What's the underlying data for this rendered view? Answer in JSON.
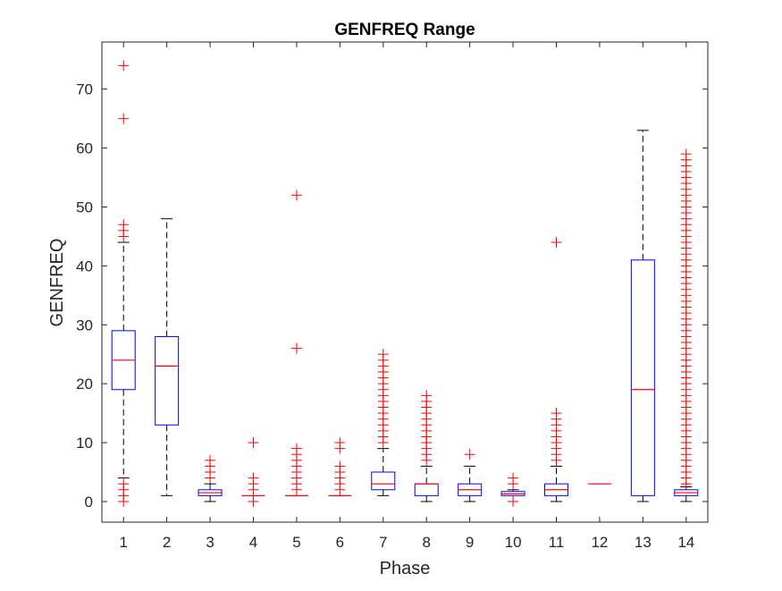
{
  "colors": {
    "box": "#0000ff",
    "median": "#ff0000",
    "outlier": "#ff0000",
    "whisker": "#000000",
    "axis": "#262626"
  },
  "chart_data": {
    "type": "boxplot",
    "title": "GENFREQ Range",
    "xlabel": "Phase",
    "ylabel": "GENFREQ",
    "ylim": [
      -3.5,
      78
    ],
    "yticks": [
      0,
      10,
      20,
      30,
      40,
      50,
      60,
      70
    ],
    "grid": false,
    "categories": [
      "1",
      "2",
      "3",
      "4",
      "5",
      "6",
      "7",
      "8",
      "9",
      "10",
      "11",
      "12",
      "13",
      "14"
    ],
    "boxes": [
      {
        "category": "1",
        "whisker_low": 4,
        "q1": 19,
        "median": 24,
        "q3": 29,
        "whisker_high": 44,
        "outliers": [
          0,
          1,
          2,
          3,
          45,
          46,
          47,
          65,
          74
        ]
      },
      {
        "category": "2",
        "whisker_low": 1,
        "q1": 13,
        "median": 23,
        "q3": 28,
        "whisker_high": 48,
        "outliers": []
      },
      {
        "category": "3",
        "whisker_low": 0,
        "q1": 1,
        "median": 1.5,
        "q3": 2,
        "whisker_high": 3,
        "outliers": [
          4,
          5,
          6,
          7
        ]
      },
      {
        "category": "4",
        "whisker_low": 1,
        "q1": 1,
        "median": 1,
        "q3": 1,
        "whisker_high": 1,
        "outliers": [
          0,
          2,
          3,
          4,
          10
        ]
      },
      {
        "category": "5",
        "whisker_low": 1,
        "q1": 1,
        "median": 1,
        "q3": 1,
        "whisker_high": 1,
        "outliers": [
          2,
          3,
          4,
          5,
          6,
          7,
          8,
          9,
          26,
          52
        ]
      },
      {
        "category": "6",
        "whisker_low": 1,
        "q1": 1,
        "median": 1,
        "q3": 1,
        "whisker_high": 1,
        "outliers": [
          2,
          3,
          4,
          5,
          6,
          9,
          10
        ]
      },
      {
        "category": "7",
        "whisker_low": 1,
        "q1": 2,
        "median": 3,
        "q3": 5,
        "whisker_high": 9,
        "outliers": [
          10,
          11,
          12,
          13,
          14,
          15,
          16,
          17,
          18,
          19,
          20,
          21,
          22,
          23,
          24,
          25
        ]
      },
      {
        "category": "8",
        "whisker_low": 0,
        "q1": 1,
        "median": 3,
        "q3": 3,
        "whisker_high": 6,
        "outliers": [
          7,
          8,
          9,
          10,
          11,
          12,
          13,
          14,
          15,
          16,
          17,
          18
        ]
      },
      {
        "category": "9",
        "whisker_low": 0,
        "q1": 1,
        "median": 2,
        "q3": 3,
        "whisker_high": 6,
        "outliers": [
          8
        ]
      },
      {
        "category": "10",
        "whisker_low": 1,
        "q1": 1,
        "median": 1.3,
        "q3": 1.7,
        "whisker_high": 2,
        "outliers": [
          0,
          3,
          4
        ]
      },
      {
        "category": "11",
        "whisker_low": 0,
        "q1": 1,
        "median": 2,
        "q3": 3,
        "whisker_high": 6,
        "outliers": [
          7,
          8,
          9,
          10,
          11,
          12,
          13,
          14,
          15,
          44
        ]
      },
      {
        "category": "12",
        "whisker_low": 3,
        "q1": 3,
        "median": 3,
        "q3": 3,
        "whisker_high": 3,
        "outliers": []
      },
      {
        "category": "13",
        "whisker_low": 0,
        "q1": 1,
        "median": 19,
        "q3": 41,
        "whisker_high": 63,
        "outliers": []
      },
      {
        "category": "14",
        "whisker_low": 0,
        "q1": 1,
        "median": 1.5,
        "q3": 2,
        "whisker_high": 2.5,
        "outliers": [
          3,
          4,
          5,
          6,
          7,
          8,
          9,
          10,
          11,
          12,
          13,
          14,
          15,
          16,
          17,
          18,
          19,
          20,
          21,
          22,
          23,
          24,
          25,
          26,
          27,
          28,
          29,
          30,
          31,
          32,
          33,
          34,
          35,
          36,
          37,
          38,
          39,
          40,
          41,
          42,
          43,
          44,
          45,
          46,
          47,
          48,
          49,
          50,
          51,
          52,
          53,
          54,
          55,
          56,
          57,
          58,
          59
        ]
      }
    ]
  }
}
